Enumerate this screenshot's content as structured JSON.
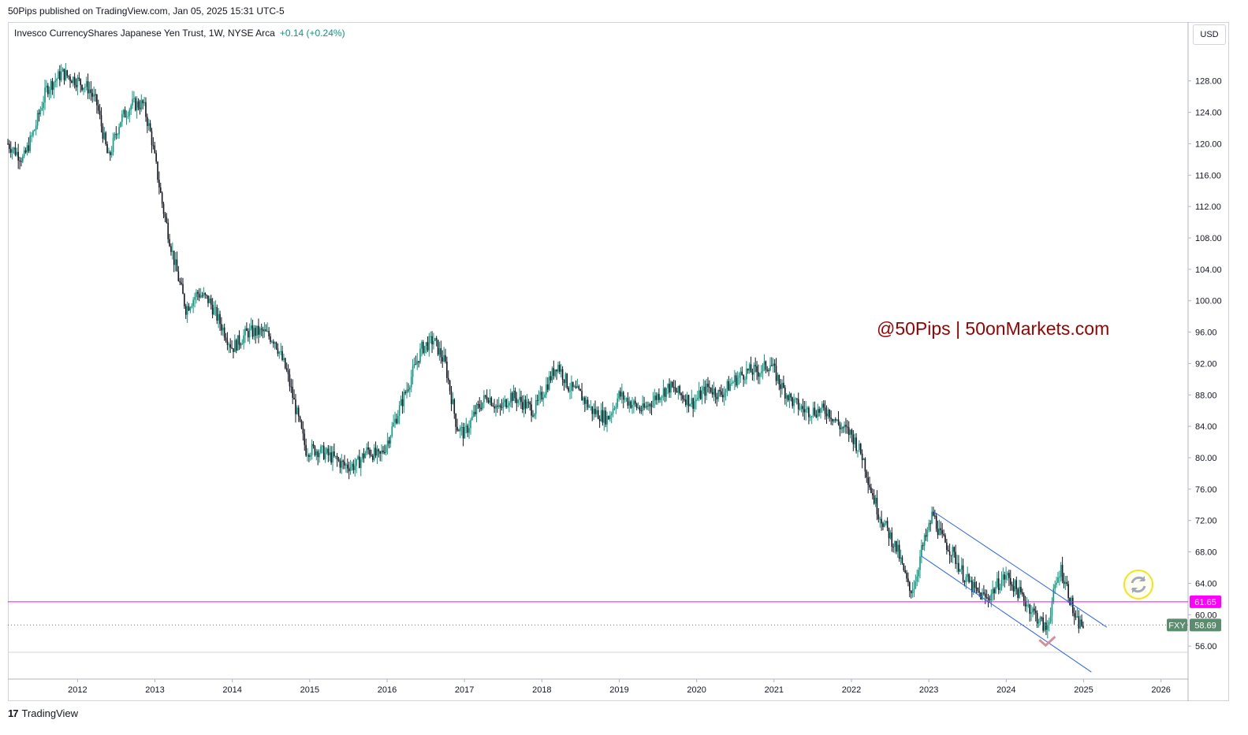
{
  "header": {
    "published": "50Pips published on TradingView.com, Jan 05, 2025 15:31 UTC-5"
  },
  "legend": {
    "symbol": "Invesco CurrencyShares Japanese Yen Trust, 1W, NYSE Arca",
    "change": "+0.14 (+0.24%)"
  },
  "currency": "USD",
  "watermark": "@50Pips | 50onMarkets.com",
  "footer": {
    "logo": "17",
    "brand": "TradingView"
  },
  "colors": {
    "up": "#089981",
    "down": "#131722",
    "horizontal_line": "#ff00ff",
    "channel": "#2962ff",
    "last_price": "#5b8c6e",
    "watermark": "#990000"
  },
  "chart_data": {
    "type": "candlestick",
    "title": "",
    "xlabel": "",
    "ylabel": "",
    "x_ticks": [
      "2012",
      "2013",
      "2014",
      "2015",
      "2016",
      "2017",
      "2018",
      "2019",
      "2020",
      "2021",
      "2022",
      "2023",
      "2024",
      "2025",
      "2026"
    ],
    "y_ticks": [
      "128.00",
      "124.00",
      "120.00",
      "116.00",
      "112.00",
      "108.00",
      "104.00",
      "100.00",
      "96.00",
      "92.00",
      "88.00",
      "84.00",
      "80.00",
      "76.00",
      "72.00",
      "68.00",
      "64.00",
      "60.00",
      "56.00"
    ],
    "ylim": [
      51.8,
      135.5
    ],
    "xlim": [
      2011.1,
      2026.35
    ],
    "price_path": [
      [
        2011.1,
        120
      ],
      [
        2011.3,
        118
      ],
      [
        2011.45,
        122
      ],
      [
        2011.6,
        127
      ],
      [
        2011.8,
        129
      ],
      [
        2012.0,
        128
      ],
      [
        2012.15,
        127
      ],
      [
        2012.25,
        125
      ],
      [
        2012.4,
        118
      ],
      [
        2012.55,
        123
      ],
      [
        2012.7,
        125
      ],
      [
        2012.85,
        125
      ],
      [
        2012.95,
        121
      ],
      [
        2013.1,
        112
      ],
      [
        2013.25,
        105
      ],
      [
        2013.4,
        99
      ],
      [
        2013.55,
        101
      ],
      [
        2013.7,
        100
      ],
      [
        2013.85,
        97
      ],
      [
        2014.0,
        94
      ],
      [
        2014.2,
        96
      ],
      [
        2014.4,
        96
      ],
      [
        2014.55,
        95
      ],
      [
        2014.7,
        91
      ],
      [
        2014.85,
        85
      ],
      [
        2014.95,
        81
      ],
      [
        2015.1,
        81
      ],
      [
        2015.3,
        80
      ],
      [
        2015.45,
        79
      ],
      [
        2015.6,
        79
      ],
      [
        2015.75,
        81
      ],
      [
        2015.9,
        80
      ],
      [
        2016.0,
        82
      ],
      [
        2016.15,
        86
      ],
      [
        2016.3,
        90
      ],
      [
        2016.45,
        94
      ],
      [
        2016.6,
        95
      ],
      [
        2016.75,
        92
      ],
      [
        2016.9,
        84
      ],
      [
        2017.0,
        83
      ],
      [
        2017.15,
        86
      ],
      [
        2017.3,
        88
      ],
      [
        2017.45,
        86
      ],
      [
        2017.6,
        88
      ],
      [
        2017.75,
        87
      ],
      [
        2017.9,
        86
      ],
      [
        2018.05,
        89
      ],
      [
        2018.2,
        92
      ],
      [
        2018.35,
        89
      ],
      [
        2018.5,
        88
      ],
      [
        2018.65,
        86
      ],
      [
        2018.85,
        85
      ],
      [
        2019.0,
        88
      ],
      [
        2019.15,
        87
      ],
      [
        2019.3,
        86
      ],
      [
        2019.5,
        88
      ],
      [
        2019.65,
        89
      ],
      [
        2019.8,
        88
      ],
      [
        2019.95,
        87
      ],
      [
        2020.15,
        89
      ],
      [
        2020.3,
        88
      ],
      [
        2020.5,
        90
      ],
      [
        2020.65,
        91
      ],
      [
        2020.8,
        91
      ],
      [
        2020.95,
        92
      ],
      [
        2021.1,
        89
      ],
      [
        2021.25,
        87
      ],
      [
        2021.4,
        86
      ],
      [
        2021.55,
        86
      ],
      [
        2021.7,
        86
      ],
      [
        2021.85,
        84
      ],
      [
        2022.0,
        83
      ],
      [
        2022.15,
        80
      ],
      [
        2022.25,
        76
      ],
      [
        2022.35,
        73
      ],
      [
        2022.5,
        70
      ],
      [
        2022.6,
        68
      ],
      [
        2022.75,
        63
      ],
      [
        2022.82,
        64
      ],
      [
        2022.9,
        68
      ],
      [
        2023.0,
        71
      ],
      [
        2023.05,
        73
      ],
      [
        2023.15,
        70
      ],
      [
        2023.3,
        68
      ],
      [
        2023.45,
        65
      ],
      [
        2023.6,
        63
      ],
      [
        2023.75,
        62
      ],
      [
        2023.9,
        64
      ],
      [
        2024.0,
        65
      ],
      [
        2024.15,
        63
      ],
      [
        2024.3,
        61
      ],
      [
        2024.45,
        59
      ],
      [
        2024.52,
        58
      ],
      [
        2024.6,
        62
      ],
      [
        2024.7,
        66
      ],
      [
        2024.8,
        63
      ],
      [
        2024.9,
        59
      ],
      [
        2025.0,
        58.69
      ]
    ],
    "horizontal_line": {
      "value": 61.65,
      "label": "61.65"
    },
    "last_price": {
      "value": 58.69,
      "symbol": "FXY",
      "label": "58.69"
    },
    "channel": {
      "upper": [
        [
          2023.05,
          73.2
        ],
        [
          2025.3,
          58.4
        ]
      ],
      "lower": [
        [
          2022.9,
          67.5
        ],
        [
          2025.1,
          52.7
        ]
      ]
    },
    "grid": false,
    "legend_position": "top-left"
  }
}
